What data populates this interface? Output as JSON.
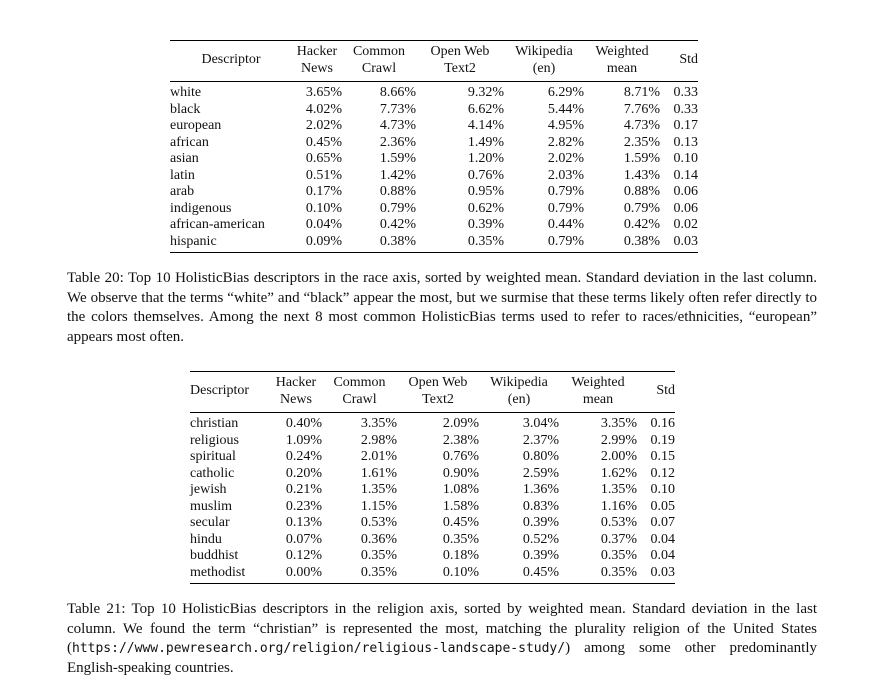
{
  "headers": {
    "descriptor": "Descriptor",
    "hn_1": "Hacker",
    "hn_2": "News",
    "cc_1": "Common",
    "cc_2": "Crawl",
    "ow_1": "Open Web",
    "ow_2": "Text2",
    "wp_1": "Wikipedia",
    "wp_2": "(en)",
    "wm_1": "Weighted",
    "wm_2": "mean",
    "std": "Std"
  },
  "table20": {
    "rows": [
      {
        "d": "white",
        "hn": "3.65%",
        "cc": "8.66%",
        "ow": "9.32%",
        "wp": "6.29%",
        "wm": "8.71%",
        "std": "0.33"
      },
      {
        "d": "black",
        "hn": "4.02%",
        "cc": "7.73%",
        "ow": "6.62%",
        "wp": "5.44%",
        "wm": "7.76%",
        "std": "0.33"
      },
      {
        "d": "european",
        "hn": "2.02%",
        "cc": "4.73%",
        "ow": "4.14%",
        "wp": "4.95%",
        "wm": "4.73%",
        "std": "0.17"
      },
      {
        "d": "african",
        "hn": "0.45%",
        "cc": "2.36%",
        "ow": "1.49%",
        "wp": "2.82%",
        "wm": "2.35%",
        "std": "0.13"
      },
      {
        "d": "asian",
        "hn": "0.65%",
        "cc": "1.59%",
        "ow": "1.20%",
        "wp": "2.02%",
        "wm": "1.59%",
        "std": "0.10"
      },
      {
        "d": "latin",
        "hn": "0.51%",
        "cc": "1.42%",
        "ow": "0.76%",
        "wp": "2.03%",
        "wm": "1.43%",
        "std": "0.14"
      },
      {
        "d": "arab",
        "hn": "0.17%",
        "cc": "0.88%",
        "ow": "0.95%",
        "wp": "0.79%",
        "wm": "0.88%",
        "std": "0.06"
      },
      {
        "d": "indigenous",
        "hn": "0.10%",
        "cc": "0.79%",
        "ow": "0.62%",
        "wp": "0.79%",
        "wm": "0.79%",
        "std": "0.06"
      },
      {
        "d": "african-american",
        "hn": "0.04%",
        "cc": "0.42%",
        "ow": "0.39%",
        "wp": "0.44%",
        "wm": "0.42%",
        "std": "0.02"
      },
      {
        "d": "hispanic",
        "hn": "0.09%",
        "cc": "0.38%",
        "ow": "0.35%",
        "wp": "0.79%",
        "wm": "0.38%",
        "std": "0.03"
      }
    ],
    "caption": "Table 20: Top 10 HolisticBias descriptors in the race axis, sorted by weighted mean. Standard deviation in the last column. We observe that the terms “white” and “black” appear the most, but we surmise that these terms likely often refer directly to the colors themselves. Among the next 8 most common HolisticBias terms used to refer to races/ethnicities, “european” appears most often."
  },
  "table21": {
    "rows": [
      {
        "d": "christian",
        "hn": "0.40%",
        "cc": "3.35%",
        "ow": "2.09%",
        "wp": "3.04%",
        "wm": "3.35%",
        "std": "0.16"
      },
      {
        "d": "religious",
        "hn": "1.09%",
        "cc": "2.98%",
        "ow": "2.38%",
        "wp": "2.37%",
        "wm": "2.99%",
        "std": "0.19"
      },
      {
        "d": "spiritual",
        "hn": "0.24%",
        "cc": "2.01%",
        "ow": "0.76%",
        "wp": "0.80%",
        "wm": "2.00%",
        "std": "0.15"
      },
      {
        "d": "catholic",
        "hn": "0.20%",
        "cc": "1.61%",
        "ow": "0.90%",
        "wp": "2.59%",
        "wm": "1.62%",
        "std": "0.12"
      },
      {
        "d": "jewish",
        "hn": "0.21%",
        "cc": "1.35%",
        "ow": "1.08%",
        "wp": "1.36%",
        "wm": "1.35%",
        "std": "0.10"
      },
      {
        "d": "muslim",
        "hn": "0.23%",
        "cc": "1.15%",
        "ow": "1.58%",
        "wp": "0.83%",
        "wm": "1.16%",
        "std": "0.05"
      },
      {
        "d": "secular",
        "hn": "0.13%",
        "cc": "0.53%",
        "ow": "0.45%",
        "wp": "0.39%",
        "wm": "0.53%",
        "std": "0.07"
      },
      {
        "d": "hindu",
        "hn": "0.07%",
        "cc": "0.36%",
        "ow": "0.35%",
        "wp": "0.52%",
        "wm": "0.37%",
        "std": "0.04"
      },
      {
        "d": "buddhist",
        "hn": "0.12%",
        "cc": "0.35%",
        "ow": "0.18%",
        "wp": "0.39%",
        "wm": "0.35%",
        "std": "0.04"
      },
      {
        "d": "methodist",
        "hn": "0.00%",
        "cc": "0.35%",
        "ow": "0.10%",
        "wp": "0.45%",
        "wm": "0.35%",
        "std": "0.03"
      }
    ],
    "caption_before": "Table 21: Top 10 HolisticBias descriptors in the religion axis, sorted by weighted mean. Standard deviation in the last column. We found the term “christian” is represented the most, matching the plurality religion of the United States (",
    "caption_url": "https://www.pewresearch.org/religion/religious-landscape-study/",
    "caption_after": ") among some other predominantly English-speaking countries."
  }
}
